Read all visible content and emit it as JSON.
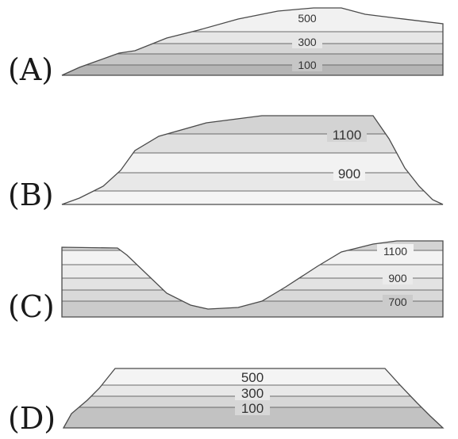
{
  "profiles": [
    {
      "letter": "(A)",
      "labels": [
        "500",
        "300",
        "100"
      ]
    },
    {
      "letter": "(B)",
      "labels": [
        "1100",
        "900"
      ]
    },
    {
      "letter": "(C)",
      "labels": [
        "1100",
        "900",
        "700"
      ]
    },
    {
      "letter": "(D)",
      "labels": [
        "500",
        "300",
        "100"
      ]
    }
  ],
  "colors": {
    "band_dark": "#b5b5b5",
    "band_mid": "#cfcfcf",
    "band_light": "#e3e3e3",
    "band_pale": "#f1f1f1",
    "outline": "#4a4a4a"
  }
}
